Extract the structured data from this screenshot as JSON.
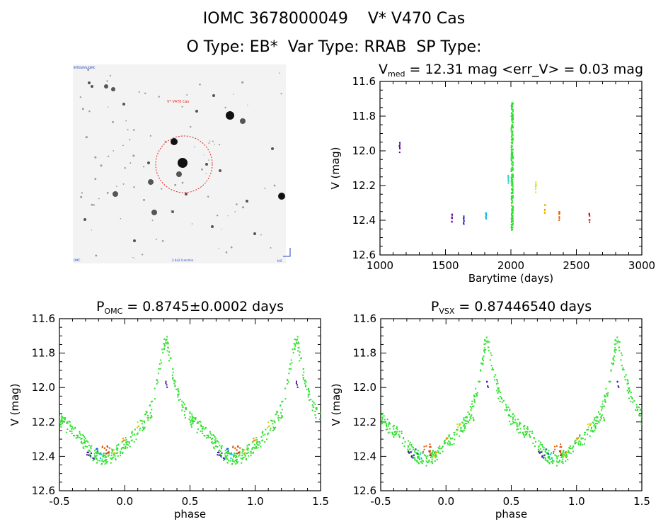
{
  "header": {
    "line1": "IOMC 3678000049    V* V470 Cas",
    "line2": "O Type: EB*  Var Type: RRAB  SP Type:"
  },
  "finder": {
    "top_left_label": "INTEGRAL/OMC",
    "target_label": "V* V470 Cas",
    "bottom_center_label": "2.4x2.4 arcmin",
    "bottom_left_label": "OMC",
    "compass": "N E"
  },
  "chart_data": [
    {
      "id": "lightcurve",
      "type": "scatter",
      "title_prefix": "V",
      "title_sub": "med",
      "title_rest": " = 12.31 mag <err_V> = 0.03 mag",
      "xlabel": "Barytime (days)",
      "ylabel": "V (mag)",
      "xlim": [
        1000,
        3000
      ],
      "ylim": [
        12.6,
        11.6
      ],
      "xticks": [
        1000,
        1500,
        2000,
        2500,
        3000
      ],
      "yticks": [
        11.6,
        11.8,
        12.0,
        12.2,
        12.4,
        12.6
      ],
      "series": [
        {
          "name": "epoch-1150",
          "color": "#5a0090",
          "x": [
            1150
          ],
          "y": [
            11.98
          ]
        },
        {
          "name": "epoch-1550",
          "color": "#6010a0",
          "x": [
            1550
          ],
          "y": [
            12.39
          ]
        },
        {
          "name": "epoch-1640",
          "color": "#2020c0",
          "x": [
            1640
          ],
          "y": [
            12.4
          ]
        },
        {
          "name": "epoch-1810",
          "color": "#00b8e8",
          "x": [
            1810
          ],
          "y": [
            12.38
          ]
        },
        {
          "name": "epoch-1980",
          "color": "#30d0d0",
          "x": [
            1980
          ],
          "y": [
            12.16
          ]
        },
        {
          "name": "epoch-2010",
          "color": "#30e030",
          "x": [
            2010
          ],
          "y": [
            12.1
          ]
        },
        {
          "name": "epoch-2190",
          "color": "#d0e020",
          "x": [
            2190
          ],
          "y": [
            12.21
          ]
        },
        {
          "name": "epoch-2260",
          "color": "#f0b000",
          "x": [
            2260
          ],
          "y": [
            12.33
          ]
        },
        {
          "name": "epoch-2370",
          "color": "#e06000",
          "x": [
            2370
          ],
          "y": [
            12.38
          ]
        },
        {
          "name": "epoch-2600",
          "color": "#d01010",
          "x": [
            2600
          ],
          "y": [
            12.39
          ]
        }
      ]
    },
    {
      "id": "phase-omc",
      "type": "scatter",
      "title_prefix": "P",
      "title_sub": "OMC",
      "title_rest": " = 0.8745±0.0002 days",
      "xlabel": "phase",
      "ylabel": "V (mag)",
      "xlim": [
        -0.5,
        1.5
      ],
      "ylim": [
        12.6,
        11.6
      ],
      "xticks": [
        -0.5,
        0.0,
        0.5,
        1.0,
        1.5
      ],
      "xtick_labels": [
        "-0.5",
        "0.0",
        "0.5",
        "1.0",
        "1.5"
      ],
      "yticks": [
        11.6,
        11.8,
        12.0,
        12.2,
        12.4,
        12.6
      ],
      "series": [
        {
          "name": "template",
          "color": "#30e030",
          "x": [
            0.0,
            0.05,
            0.1,
            0.15,
            0.2,
            0.25,
            0.3,
            0.32,
            0.35,
            0.4,
            0.45,
            0.5,
            0.55,
            0.6,
            0.65,
            0.7,
            0.75,
            0.8,
            0.85,
            0.9,
            0.95,
            1.0
          ],
          "y": [
            12.33,
            12.3,
            12.25,
            12.2,
            12.12,
            11.98,
            11.75,
            11.72,
            11.85,
            12.02,
            12.12,
            12.18,
            12.22,
            12.25,
            12.28,
            12.33,
            12.38,
            12.41,
            12.42,
            12.4,
            12.37,
            12.33
          ]
        }
      ]
    },
    {
      "id": "phase-vsx",
      "type": "scatter",
      "title_prefix": "P",
      "title_sub": "VSX",
      "title_rest": " = 0.87446540 days",
      "xlabel": "phase",
      "ylabel": "V (mag)",
      "xlim": [
        -0.5,
        1.5
      ],
      "ylim": [
        12.6,
        11.6
      ],
      "xticks": [
        -0.5,
        0.0,
        0.5,
        1.0,
        1.5
      ],
      "xtick_labels": [
        "-0.5",
        "0.0",
        "0.5",
        "1.0",
        "1.5"
      ],
      "yticks": [
        11.6,
        11.8,
        12.0,
        12.2,
        12.4,
        12.6
      ],
      "series": [
        {
          "name": "template",
          "color": "#30e030",
          "x": [
            0.0,
            0.05,
            0.1,
            0.15,
            0.2,
            0.25,
            0.3,
            0.32,
            0.35,
            0.4,
            0.45,
            0.5,
            0.55,
            0.6,
            0.65,
            0.7,
            0.75,
            0.8,
            0.85,
            0.9,
            0.95,
            1.0
          ],
          "y": [
            12.33,
            12.3,
            12.25,
            12.2,
            12.12,
            11.98,
            11.75,
            11.72,
            11.85,
            12.02,
            12.12,
            12.18,
            12.22,
            12.25,
            12.28,
            12.33,
            12.38,
            12.41,
            12.42,
            12.4,
            12.37,
            12.33
          ]
        }
      ]
    }
  ]
}
